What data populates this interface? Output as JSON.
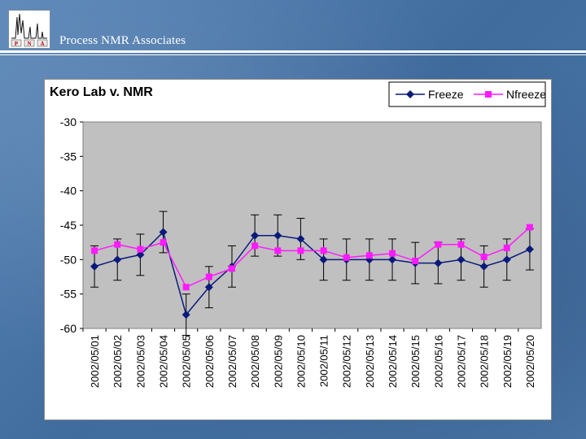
{
  "header": {
    "title": "Process NMR Associates",
    "logo_text": [
      "P",
      "N",
      "A"
    ]
  },
  "colors": {
    "freeze": "#0a1a7a",
    "nfreeze": "#ff1aff",
    "plot_area": "#c0c0c0",
    "error_bar": "#000000"
  },
  "chart_data": {
    "type": "line",
    "title": "Kero  Lab v. NMR",
    "xlabel": "",
    "ylabel": "",
    "ylim": [
      -60,
      -30
    ],
    "yticks": [
      -30,
      -35,
      -40,
      -45,
      -50,
      -55,
      -60
    ],
    "legend_position": "top-right",
    "grid": false,
    "categories": [
      "2002/05/01",
      "2002/05/02",
      "2002/05/03",
      "2002/05/04",
      "2002/05/05",
      "2002/05/06",
      "2002/05/07",
      "2002/05/08",
      "2002/05/09",
      "2002/05/10",
      "2002/05/11",
      "2002/05/12",
      "2002/05/13",
      "2002/05/14",
      "2002/05/15",
      "2002/05/16",
      "2002/05/17",
      "2002/05/18",
      "2002/05/19",
      "2002/05/20"
    ],
    "series": [
      {
        "name": "Freeze",
        "marker": "diamond",
        "values": [
          -51,
          -50,
          -49.3,
          -46,
          -58,
          -54,
          -51,
          -46.5,
          -46.5,
          -47,
          -50,
          -50,
          -50,
          -50,
          -50.5,
          -50.5,
          -50,
          -51,
          -50,
          -48.5
        ],
        "error": 3
      },
      {
        "name": "Nfreeze",
        "marker": "square",
        "values": [
          -48.7,
          -47.8,
          -48.5,
          -47.5,
          -54,
          -52.5,
          -51.3,
          -48,
          -48.7,
          -48.7,
          -48.7,
          -49.7,
          -49.4,
          -49.1,
          -50.2,
          -47.8,
          -47.8,
          -49.6,
          -48.3,
          -45.3
        ]
      }
    ]
  }
}
